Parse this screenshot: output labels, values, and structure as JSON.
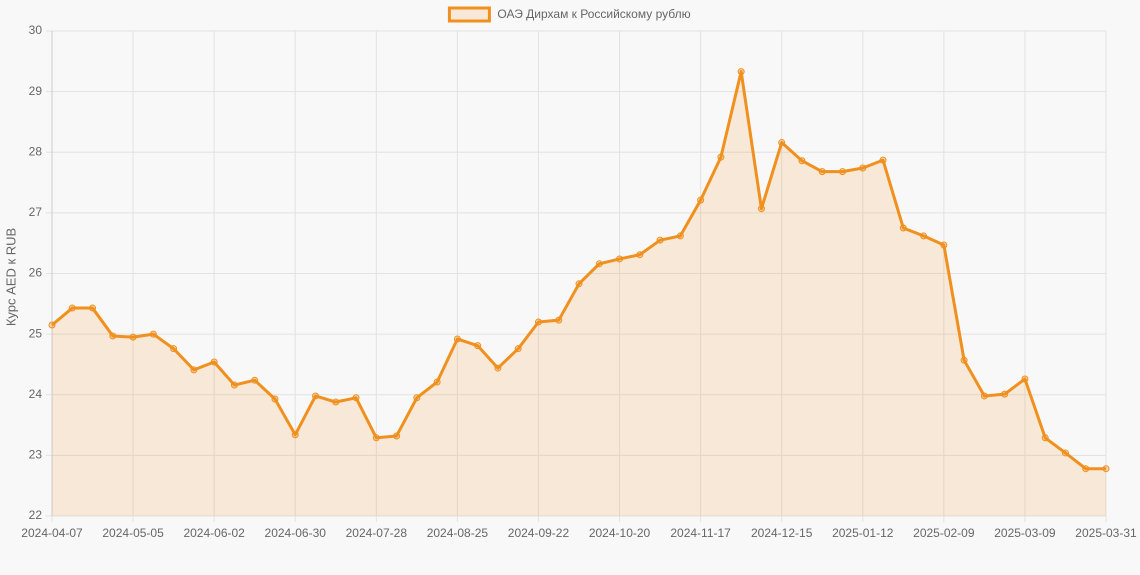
{
  "chart_data": {
    "type": "line",
    "y_label": "Курс AED к RUB",
    "legend": "top",
    "grid": true,
    "categories": [
      "2024-04-07",
      null,
      null,
      null,
      "2024-05-05",
      null,
      null,
      null,
      "2024-06-02",
      null,
      null,
      null,
      "2024-06-30",
      null,
      null,
      null,
      "2024-07-28",
      null,
      null,
      null,
      "2024-08-25",
      null,
      null,
      null,
      "2024-09-22",
      null,
      null,
      null,
      "2024-10-20",
      null,
      null,
      null,
      "2024-11-17",
      null,
      null,
      null,
      "2024-12-15",
      null,
      null,
      null,
      "2025-01-12",
      null,
      null,
      null,
      "2025-02-09",
      null,
      null,
      null,
      "2025-03-09",
      null,
      null,
      null,
      "2025-03-31"
    ],
    "series": [
      {
        "name": "ОАЭ Дирхам к Российскому рублю",
        "color": "#f0901e",
        "fill": true,
        "values": [
          25.15,
          25.43,
          25.43,
          24.97,
          24.95,
          25.0,
          24.76,
          24.41,
          24.54,
          24.16,
          24.24,
          23.93,
          23.34,
          23.98,
          23.88,
          23.95,
          23.29,
          23.32,
          23.95,
          24.21,
          24.92,
          24.81,
          24.44,
          24.76,
          25.2,
          25.23,
          25.83,
          26.16,
          26.24,
          26.31,
          26.55,
          26.62,
          27.21,
          27.92,
          29.33,
          27.07,
          28.16,
          27.86,
          27.68,
          27.68,
          27.74,
          27.87,
          26.75,
          26.62,
          26.47,
          24.57,
          23.98,
          24.01,
          24.26,
          23.29,
          23.04,
          22.78,
          22.78
        ]
      }
    ],
    "ylim": [
      22,
      30
    ],
    "yticks": [
      22,
      23,
      24,
      25,
      26,
      27,
      28,
      29,
      30
    ]
  }
}
